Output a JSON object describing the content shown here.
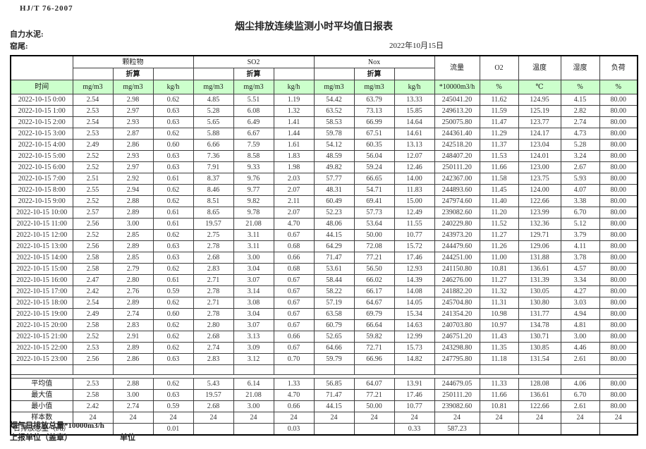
{
  "page": {
    "doc_code": "HJ/T 76-2007",
    "title": "烟尘排放连续监测小时平均值日报表",
    "company_label": "自力水泥:",
    "site_label": "窑尾:",
    "date": "2022年10月15日"
  },
  "table": {
    "time_header": "时间",
    "groups": [
      {
        "label": "颗粒物"
      },
      {
        "label": "SO2"
      },
      {
        "label": "Nox"
      }
    ],
    "converted_label": "折算",
    "flow_header": "流量",
    "o2_header": "O2",
    "temp_header": "温度",
    "humidity_header": "湿度",
    "load_header": "负荷",
    "units": [
      "mg/m3",
      "mg/m3",
      "kg/h",
      "mg/m3",
      "mg/m3",
      "kg/h",
      "mg/m3",
      "mg/m3",
      "kg/h",
      "*10000m3/h",
      "%",
      "℃",
      "%",
      "%"
    ],
    "rows": [
      [
        "2022-10-15 0:00",
        "2.54",
        "2.98",
        "0.62",
        "4.85",
        "5.51",
        "1.19",
        "54.42",
        "63.79",
        "13.33",
        "245041.20",
        "11.62",
        "124.95",
        "4.15",
        "80.00"
      ],
      [
        "2022-10-15 1:00",
        "2.53",
        "2.97",
        "0.63",
        "5.28",
        "6.08",
        "1.32",
        "63.52",
        "73.13",
        "15.85",
        "249613.20",
        "11.59",
        "125.19",
        "2.82",
        "80.00"
      ],
      [
        "2022-10-15 2:00",
        "2.54",
        "2.93",
        "0.63",
        "5.65",
        "6.49",
        "1.41",
        "58.53",
        "66.99",
        "14.64",
        "250075.80",
        "11.47",
        "123.77",
        "2.74",
        "80.00"
      ],
      [
        "2022-10-15 3:00",
        "2.53",
        "2.87",
        "0.62",
        "5.88",
        "6.67",
        "1.44",
        "59.78",
        "67.51",
        "14.61",
        "244361.40",
        "11.29",
        "124.17",
        "4.73",
        "80.00"
      ],
      [
        "2022-10-15 4:00",
        "2.49",
        "2.86",
        "0.60",
        "6.66",
        "7.59",
        "1.61",
        "54.12",
        "60.35",
        "13.13",
        "242518.20",
        "11.37",
        "123.04",
        "5.28",
        "80.00"
      ],
      [
        "2022-10-15 5:00",
        "2.52",
        "2.93",
        "0.63",
        "7.36",
        "8.58",
        "1.83",
        "48.59",
        "56.04",
        "12.07",
        "248407.20",
        "11.53",
        "124.01",
        "3.24",
        "80.00"
      ],
      [
        "2022-10-15 6:00",
        "2.52",
        "2.97",
        "0.63",
        "7.91",
        "9.33",
        "1.98",
        "49.82",
        "59.24",
        "12.46",
        "250111.20",
        "11.66",
        "123.00",
        "2.67",
        "80.00"
      ],
      [
        "2022-10-15 7:00",
        "2.51",
        "2.92",
        "0.61",
        "8.37",
        "9.76",
        "2.03",
        "57.77",
        "66.65",
        "14.00",
        "242367.00",
        "11.58",
        "123.75",
        "5.93",
        "80.00"
      ],
      [
        "2022-10-15 8:00",
        "2.55",
        "2.94",
        "0.62",
        "8.46",
        "9.77",
        "2.07",
        "48.31",
        "54.71",
        "11.83",
        "244893.60",
        "11.45",
        "124.00",
        "4.07",
        "80.00"
      ],
      [
        "2022-10-15 9:00",
        "2.52",
        "2.88",
        "0.62",
        "8.51",
        "9.82",
        "2.11",
        "60.49",
        "69.41",
        "15.00",
        "247974.60",
        "11.40",
        "122.66",
        "3.38",
        "80.00"
      ],
      [
        "2022-10-15 10:00",
        "2.57",
        "2.89",
        "0.61",
        "8.65",
        "9.78",
        "2.07",
        "52.23",
        "57.73",
        "12.49",
        "239082.60",
        "11.20",
        "123.99",
        "6.70",
        "80.00"
      ],
      [
        "2022-10-15 11:00",
        "2.56",
        "3.00",
        "0.61",
        "19.57",
        "21.08",
        "4.70",
        "48.06",
        "53.64",
        "11.55",
        "240229.80",
        "11.52",
        "132.36",
        "5.12",
        "80.00"
      ],
      [
        "2022-10-15 12:00",
        "2.52",
        "2.85",
        "0.62",
        "2.75",
        "3.11",
        "0.67",
        "44.15",
        "50.00",
        "10.77",
        "243973.20",
        "11.27",
        "129.71",
        "3.79",
        "80.00"
      ],
      [
        "2022-10-15 13:00",
        "2.56",
        "2.89",
        "0.63",
        "2.78",
        "3.11",
        "0.68",
        "64.29",
        "72.08",
        "15.72",
        "244479.60",
        "11.26",
        "129.06",
        "4.11",
        "80.00"
      ],
      [
        "2022-10-15 14:00",
        "2.58",
        "2.85",
        "0.63",
        "2.68",
        "3.00",
        "0.66",
        "71.47",
        "77.21",
        "17.46",
        "244251.00",
        "11.00",
        "131.88",
        "3.78",
        "80.00"
      ],
      [
        "2022-10-15 15:00",
        "2.58",
        "2.79",
        "0.62",
        "2.83",
        "3.04",
        "0.68",
        "53.61",
        "56.50",
        "12.93",
        "241150.80",
        "10.81",
        "136.61",
        "4.57",
        "80.00"
      ],
      [
        "2022-10-15 16:00",
        "2.47",
        "2.80",
        "0.61",
        "2.71",
        "3.07",
        "0.67",
        "58.44",
        "66.02",
        "14.39",
        "246276.00",
        "11.27",
        "131.39",
        "3.34",
        "80.00"
      ],
      [
        "2022-10-15 17:00",
        "2.42",
        "2.76",
        "0.59",
        "2.78",
        "3.14",
        "0.67",
        "58.22",
        "66.17",
        "14.08",
        "241882.20",
        "11.32",
        "130.05",
        "4.27",
        "80.00"
      ],
      [
        "2022-10-15 18:00",
        "2.54",
        "2.89",
        "0.62",
        "2.71",
        "3.08",
        "0.67",
        "57.19",
        "64.67",
        "14.05",
        "245704.80",
        "11.31",
        "130.80",
        "3.03",
        "80.00"
      ],
      [
        "2022-10-15 19:00",
        "2.49",
        "2.74",
        "0.60",
        "2.78",
        "3.04",
        "0.67",
        "63.58",
        "69.79",
        "15.34",
        "241354.20",
        "10.98",
        "131.77",
        "4.94",
        "80.00"
      ],
      [
        "2022-10-15 20:00",
        "2.58",
        "2.83",
        "0.62",
        "2.80",
        "3.07",
        "0.67",
        "60.79",
        "66.64",
        "14.63",
        "240703.80",
        "10.97",
        "134.78",
        "4.81",
        "80.00"
      ],
      [
        "2022-10-15 21:00",
        "2.52",
        "2.91",
        "0.62",
        "2.68",
        "3.13",
        "0.66",
        "52.65",
        "59.82",
        "12.99",
        "246751.20",
        "11.43",
        "130.71",
        "3.00",
        "80.00"
      ],
      [
        "2022-10-15 22:00",
        "2.53",
        "2.89",
        "0.62",
        "2.74",
        "3.09",
        "0.67",
        "64.66",
        "72.71",
        "15.73",
        "243298.80",
        "11.35",
        "130.85",
        "4.46",
        "80.00"
      ],
      [
        "2022-10-15 23:00",
        "2.56",
        "2.86",
        "0.63",
        "2.83",
        "3.12",
        "0.70",
        "59.79",
        "66.96",
        "14.82",
        "247795.80",
        "11.18",
        "131.54",
        "2.61",
        "80.00"
      ]
    ],
    "summary": [
      {
        "label": "平均值",
        "values": [
          "2.53",
          "2.88",
          "0.62",
          "5.43",
          "6.14",
          "1.33",
          "56.85",
          "64.07",
          "13.91",
          "244679.05",
          "11.33",
          "128.08",
          "4.06",
          "80.00"
        ]
      },
      {
        "label": "最大值",
        "values": [
          "2.58",
          "3.00",
          "0.63",
          "19.57",
          "21.08",
          "4.70",
          "71.47",
          "77.21",
          "17.46",
          "250111.20",
          "11.66",
          "136.61",
          "6.70",
          "80.00"
        ]
      },
      {
        "label": "最小值",
        "values": [
          "2.42",
          "2.74",
          "0.59",
          "2.68",
          "3.00",
          "0.66",
          "44.15",
          "50.00",
          "10.77",
          "239082.60",
          "10.81",
          "122.66",
          "2.61",
          "80.00"
        ]
      },
      {
        "label": "样本数",
        "values": [
          "24",
          "24",
          "24",
          "24",
          "24",
          "24",
          "24",
          "24",
          "24",
          "24",
          "24",
          "24",
          "24",
          "24"
        ]
      }
    ],
    "daily_total": {
      "label": "日排放总量（t/d）",
      "values": [
        "",
        "0.01",
        "",
        "",
        "0.03",
        "",
        "",
        "0.33",
        "587.23",
        "",
        "",
        "",
        ""
      ]
    }
  },
  "footer": {
    "note": "烟气日排放总量*10000m3/h",
    "report_unit": "上报单位（盖章）",
    "unit_label": "单位"
  }
}
